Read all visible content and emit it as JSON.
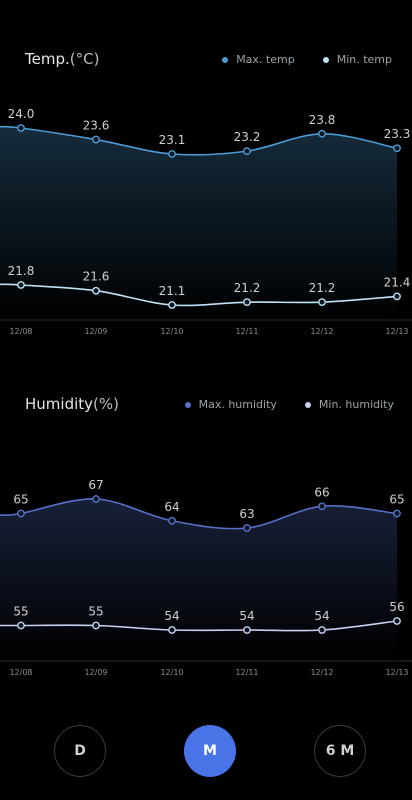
{
  "colors": {
    "max_temp": "#4d9bd6",
    "min_temp": "#bfe2f6",
    "max_humidity": "#5572c9",
    "min_humidity": "#c9d2f2",
    "active": "#4a73e8"
  },
  "temperature": {
    "title": "Temp.",
    "unit": "(°C)",
    "legend": [
      "Max. temp",
      "Min. temp"
    ]
  },
  "humidity": {
    "title": "Humidity",
    "unit": "(%)",
    "legend": [
      "Max. humidity",
      "Min. humidity"
    ]
  },
  "range_buttons": [
    {
      "label": "D",
      "active": false
    },
    {
      "label": "M",
      "active": true
    },
    {
      "label": "6 M",
      "active": false
    }
  ],
  "chart_data": [
    {
      "type": "line",
      "title": "Temp.(°C)",
      "categories": [
        "12/08",
        "12/09",
        "12/10",
        "12/11",
        "12/12",
        "12/13"
      ],
      "series": [
        {
          "name": "Max. temp",
          "values": [
            24.0,
            23.6,
            23.1,
            23.2,
            23.8,
            23.3
          ]
        },
        {
          "name": "Min. temp",
          "values": [
            21.8,
            21.6,
            21.1,
            21.2,
            21.2,
            21.4
          ]
        }
      ],
      "value_labels": [
        [
          "24.0",
          "23.6",
          "23.1",
          "23.2",
          "23.8",
          "23.3"
        ],
        [
          "21.8",
          "21.6",
          "21.1",
          "21.2",
          "21.2",
          "21.4"
        ]
      ],
      "legend": "top-right",
      "grid": false
    },
    {
      "type": "line",
      "title": "Humidity(%)",
      "categories": [
        "12/08",
        "12/09",
        "12/10",
        "12/11",
        "12/12",
        "12/13"
      ],
      "series": [
        {
          "name": "Max. humidity",
          "values": [
            65,
            67,
            64,
            63,
            66,
            65
          ]
        },
        {
          "name": "Min. humidity",
          "values": [
            55,
            55,
            54,
            54,
            54,
            56
          ]
        }
      ],
      "value_labels": [
        [
          "65",
          "67",
          "64",
          "63",
          "66",
          "65"
        ],
        [
          "55",
          "55",
          "54",
          "54",
          "54",
          "56"
        ]
      ],
      "legend": "top-right",
      "grid": false
    }
  ]
}
